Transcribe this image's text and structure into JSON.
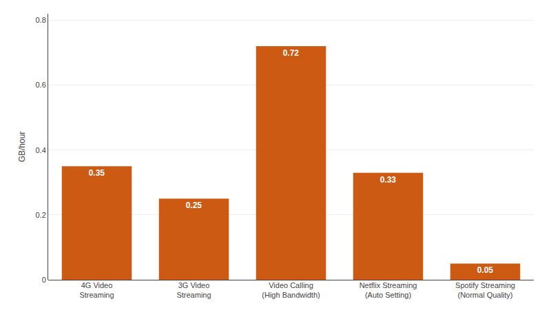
{
  "chart_data": {
    "type": "bar",
    "categories": [
      "4G Video\nStreaming",
      "3G Video\nStreaming",
      "Video Calling\n(High Bandwidth)",
      "Netflix Streaming\n(Auto Setting)",
      "Spotify Streaming\n(Normal Quality)"
    ],
    "values": [
      0.35,
      0.25,
      0.72,
      0.33,
      0.05
    ],
    "color": "#cc5a12",
    "ylabel": "GB/hour",
    "ylim": [
      0,
      0.82
    ],
    "yticks": [
      0,
      0.2,
      0.4,
      0.6,
      0.8
    ],
    "grid": true,
    "data_labels": true
  }
}
